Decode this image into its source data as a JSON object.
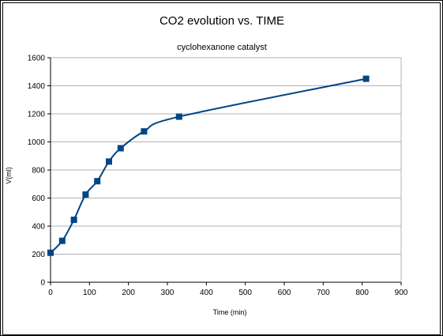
{
  "chart_data": {
    "type": "line",
    "title": "CO2 evolution vs. TIME",
    "subtitle": "cyclohexanone catalyst",
    "xlabel": "Time (min)",
    "ylabel": "V(ml)",
    "xlim": [
      0,
      900
    ],
    "ylim": [
      0,
      1600
    ],
    "x_ticks": [
      0,
      100,
      200,
      300,
      400,
      500,
      600,
      700,
      800,
      900
    ],
    "y_ticks": [
      0,
      200,
      400,
      600,
      800,
      1000,
      1200,
      1400,
      1600
    ],
    "grid": "horizontal",
    "series": [
      {
        "marker": "square",
        "color": "#004586",
        "x": [
          0,
          30,
          60,
          90,
          120,
          150,
          180,
          240,
          330,
          810
        ],
        "y": [
          210,
          295,
          445,
          625,
          720,
          860,
          955,
          1075,
          1180,
          1450
        ]
      }
    ]
  }
}
